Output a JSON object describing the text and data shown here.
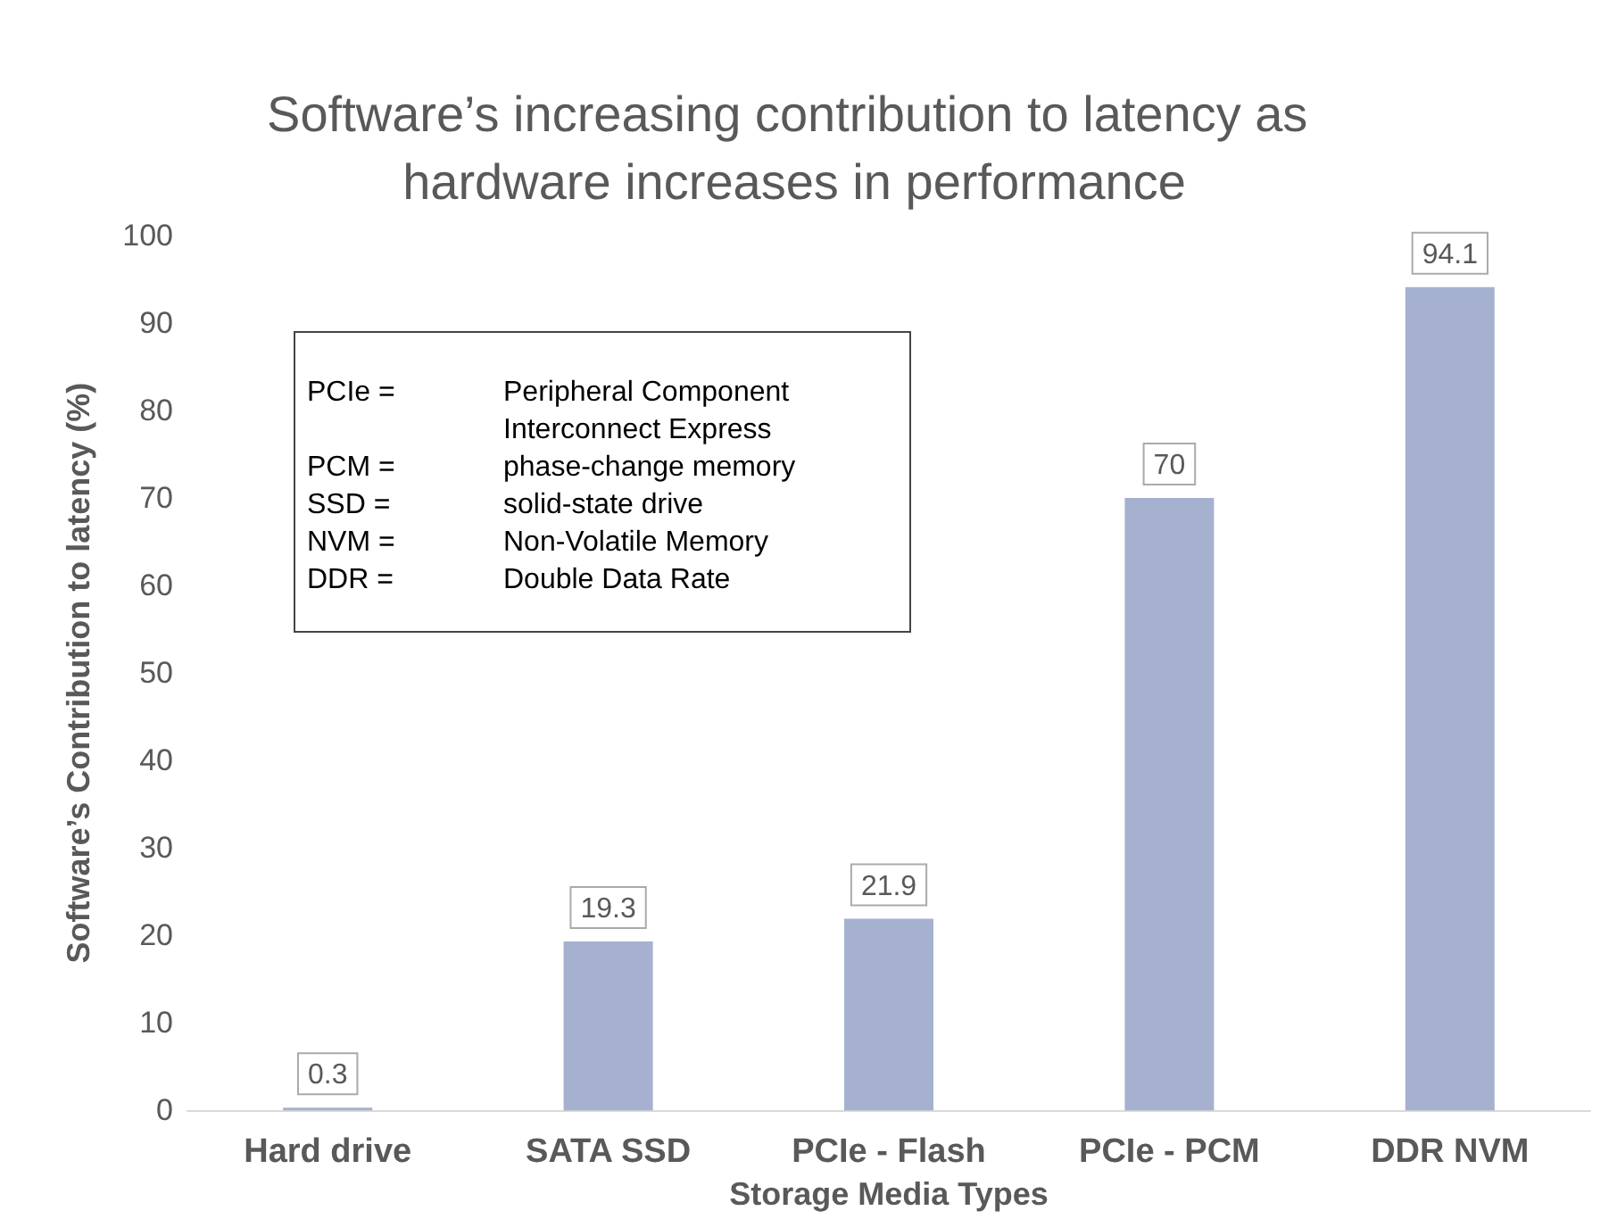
{
  "chart_data": {
    "type": "bar",
    "title": "Software’s increasing contribution to latency as hardware increases in performance",
    "xlabel": "Storage Media Types",
    "ylabel": "Software’s Contribution to latency (%)",
    "categories": [
      "Hard drive",
      "SATA SSD",
      "PCIe - Flash",
      "PCIe - PCM",
      "DDR NVM"
    ],
    "values": [
      0.3,
      19.3,
      21.9,
      70,
      94.1
    ],
    "color": "#a5b1cf",
    "ylim": [
      0,
      100
    ],
    "yticks": [
      0,
      10,
      20,
      30,
      40,
      50,
      60,
      70,
      80,
      90,
      100
    ],
    "grid": false,
    "data_labels": true,
    "annotations": [
      "PCIe = Peripheral Component Interconnect Express",
      "PCM = phase-change memory",
      "SSD = solid-state drive",
      "NVM = Non-Volatile Memory",
      "DDR = Double Data Rate"
    ]
  }
}
